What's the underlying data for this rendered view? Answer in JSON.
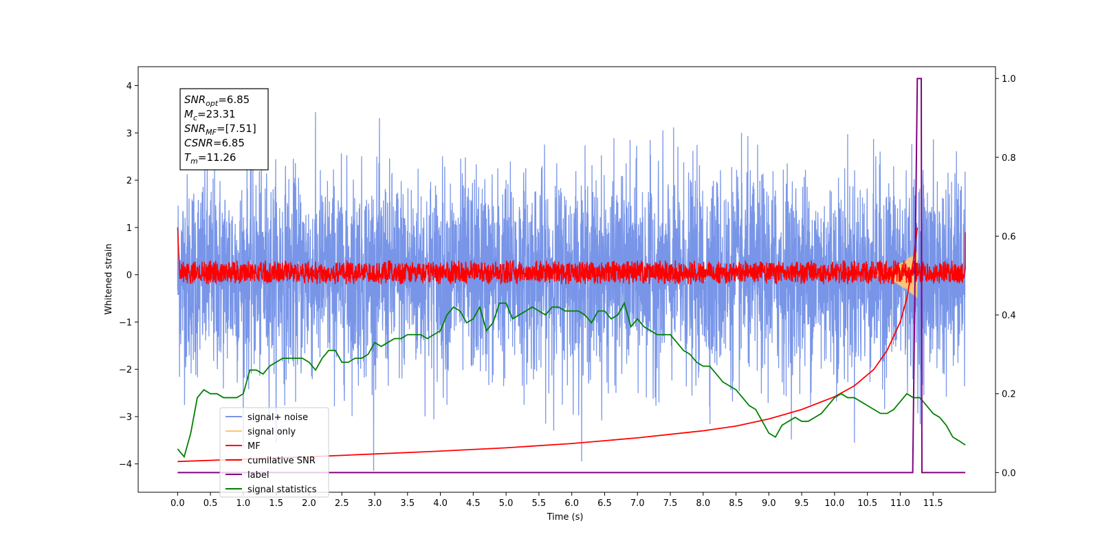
{
  "chart_data": {
    "type": "line",
    "xlabel": "Time (s)",
    "ylabel": "Whitened strain",
    "xlim": [
      -0.6,
      12.45
    ],
    "ylim": [
      -4.6,
      4.4
    ],
    "y2lim": [
      -0.05,
      1.03
    ],
    "x_ticks": [
      "0.0",
      "0.5",
      "1.0",
      "1.5",
      "2.0",
      "2.5",
      "3.0",
      "3.5",
      "4.0",
      "4.5",
      "5.0",
      "5.5",
      "6.0",
      "6.5",
      "7.0",
      "7.5",
      "8.0",
      "8.5",
      "9.0",
      "9.5",
      "10.0",
      "10.5",
      "11.0",
      "11.5"
    ],
    "x_tick_values": [
      0,
      0.5,
      1,
      1.5,
      2,
      2.5,
      3,
      3.5,
      4,
      4.5,
      5,
      5.5,
      6,
      6.5,
      7,
      7.5,
      8,
      8.5,
      9,
      9.5,
      10,
      10.5,
      11,
      11.5
    ],
    "y_ticks": [
      "−4",
      "−3",
      "−2",
      "−1",
      "0",
      "1",
      "2",
      "3",
      "4"
    ],
    "y_tick_values": [
      -4,
      -3,
      -2,
      -1,
      0,
      1,
      2,
      3,
      4
    ],
    "y2_ticks": [
      "0.0",
      "0.2",
      "0.4",
      "0.6",
      "0.8",
      "1.0"
    ],
    "y2_tick_values": [
      0,
      0.2,
      0.4,
      0.6,
      0.8,
      1.0
    ],
    "grid": false,
    "legend_position": "lower-left",
    "annotations": [
      {
        "base": "SNR",
        "sub": "opt",
        "value": "=6.85"
      },
      {
        "base": "M",
        "sub": "c",
        "value": "=23.31"
      },
      {
        "base": "SNR",
        "sub": "MF",
        "value": "=[7.51]"
      },
      {
        "base": "CSNR",
        "sub": "",
        "value": "=6.85"
      },
      {
        "base": "T",
        "sub": "m",
        "value": "=11.26"
      }
    ],
    "series": [
      {
        "name": "signal+ noise",
        "axis": "left",
        "color": "#7895e8",
        "description_range": [
          -4.2,
          4.0
        ],
        "t_range": [
          0,
          11.99
        ]
      },
      {
        "name": "signal only",
        "axis": "left",
        "color": "#f5c77a",
        "chirp_start": 10.6,
        "chirp_end": 11.26,
        "peak_amplitude": 0.5
      },
      {
        "name": "MF",
        "axis": "left",
        "color": "#ff0000",
        "band": [
          -0.2,
          0.3
        ],
        "t_range": [
          0,
          11.99
        ]
      },
      {
        "name": "cumilative SNR",
        "axis": "left",
        "color": "#ff0000",
        "x": [
          0,
          1,
          2,
          3,
          4,
          5,
          6,
          7,
          8,
          8.5,
          9,
          9.5,
          10,
          10.3,
          10.6,
          10.8,
          11.0,
          11.1,
          11.2,
          11.26
        ],
        "y": [
          -3.95,
          -3.9,
          -3.85,
          -3.79,
          -3.73,
          -3.66,
          -3.57,
          -3.45,
          -3.3,
          -3.2,
          -3.05,
          -2.85,
          -2.58,
          -2.35,
          -2.0,
          -1.6,
          -1.0,
          -0.5,
          0.3,
          1.0
        ]
      },
      {
        "name": "label",
        "axis": "right",
        "color": "#800080",
        "x": [
          0,
          11.19,
          11.26,
          11.32,
          11.33,
          11.99
        ],
        "y": [
          0,
          0,
          1.0,
          1.0,
          0,
          0
        ]
      },
      {
        "name": "signal statistics",
        "axis": "right",
        "color": "#008000",
        "x": [
          0,
          0.1,
          0.2,
          0.3,
          0.4,
          0.5,
          0.6,
          0.7,
          0.8,
          0.9,
          1.0,
          1.1,
          1.2,
          1.3,
          1.4,
          1.5,
          1.6,
          1.7,
          1.8,
          1.9,
          2.0,
          2.1,
          2.2,
          2.3,
          2.4,
          2.5,
          2.6,
          2.7,
          2.8,
          2.9,
          3.0,
          3.1,
          3.2,
          3.3,
          3.4,
          3.5,
          3.6,
          3.7,
          3.8,
          3.9,
          4.0,
          4.1,
          4.2,
          4.3,
          4.4,
          4.5,
          4.6,
          4.7,
          4.8,
          4.9,
          5.0,
          5.1,
          5.2,
          5.3,
          5.4,
          5.5,
          5.6,
          5.7,
          5.8,
          5.9,
          6.0,
          6.1,
          6.2,
          6.3,
          6.4,
          6.5,
          6.6,
          6.7,
          6.8,
          6.9,
          7.0,
          7.1,
          7.2,
          7.3,
          7.4,
          7.5,
          7.6,
          7.7,
          7.8,
          7.9,
          8.0,
          8.1,
          8.2,
          8.3,
          8.4,
          8.5,
          8.6,
          8.7,
          8.8,
          8.9,
          9.0,
          9.1,
          9.2,
          9.3,
          9.4,
          9.5,
          9.6,
          9.7,
          9.8,
          9.9,
          10.0,
          10.1,
          10.2,
          10.3,
          10.4,
          10.5,
          10.6,
          10.7,
          10.8,
          10.9,
          11.0,
          11.1,
          11.2,
          11.3,
          11.4,
          11.5,
          11.6,
          11.7,
          11.8,
          11.9,
          11.99
        ],
        "y": [
          0.06,
          0.04,
          0.1,
          0.19,
          0.21,
          0.2,
          0.2,
          0.19,
          0.19,
          0.19,
          0.2,
          0.26,
          0.26,
          0.25,
          0.27,
          0.28,
          0.29,
          0.29,
          0.29,
          0.29,
          0.28,
          0.26,
          0.29,
          0.31,
          0.31,
          0.28,
          0.28,
          0.29,
          0.29,
          0.3,
          0.33,
          0.32,
          0.33,
          0.34,
          0.34,
          0.35,
          0.35,
          0.35,
          0.34,
          0.35,
          0.36,
          0.4,
          0.42,
          0.41,
          0.38,
          0.39,
          0.42,
          0.36,
          0.38,
          0.43,
          0.43,
          0.39,
          0.4,
          0.41,
          0.42,
          0.41,
          0.4,
          0.42,
          0.42,
          0.41,
          0.41,
          0.41,
          0.4,
          0.38,
          0.41,
          0.41,
          0.39,
          0.4,
          0.43,
          0.37,
          0.39,
          0.37,
          0.36,
          0.35,
          0.35,
          0.35,
          0.33,
          0.31,
          0.3,
          0.28,
          0.27,
          0.27,
          0.25,
          0.23,
          0.22,
          0.21,
          0.19,
          0.17,
          0.16,
          0.13,
          0.1,
          0.09,
          0.12,
          0.13,
          0.14,
          0.13,
          0.13,
          0.14,
          0.15,
          0.17,
          0.19,
          0.2,
          0.19,
          0.19,
          0.18,
          0.17,
          0.16,
          0.15,
          0.15,
          0.16,
          0.18,
          0.2,
          0.19,
          0.19,
          0.17,
          0.15,
          0.14,
          0.12,
          0.09,
          0.08,
          0.07
        ]
      }
    ]
  }
}
